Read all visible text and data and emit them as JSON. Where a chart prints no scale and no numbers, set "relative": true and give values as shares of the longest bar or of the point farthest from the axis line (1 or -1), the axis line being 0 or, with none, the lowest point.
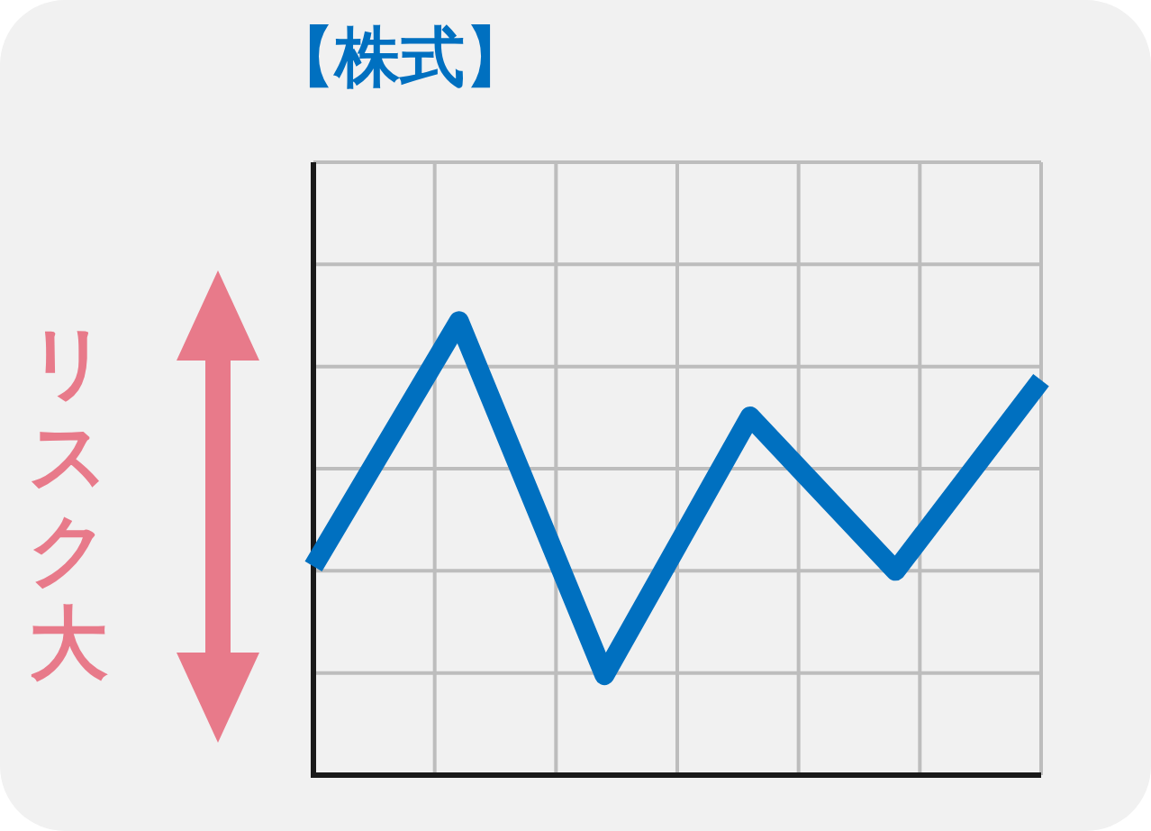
{
  "chart_data": {
    "type": "line",
    "title": "【株式】",
    "ylabel": "リスク大",
    "relative": true,
    "categories": [
      null,
      null,
      null,
      null,
      null,
      null
    ],
    "series": [
      {
        "color": "#0070c0",
        "values": [
          0.46,
          1,
          0.22,
          0.79,
          0.45,
          0.87
        ]
      }
    ],
    "grid": true,
    "tick_labels": false,
    "marker": "none",
    "line_style": "solid"
  }
}
